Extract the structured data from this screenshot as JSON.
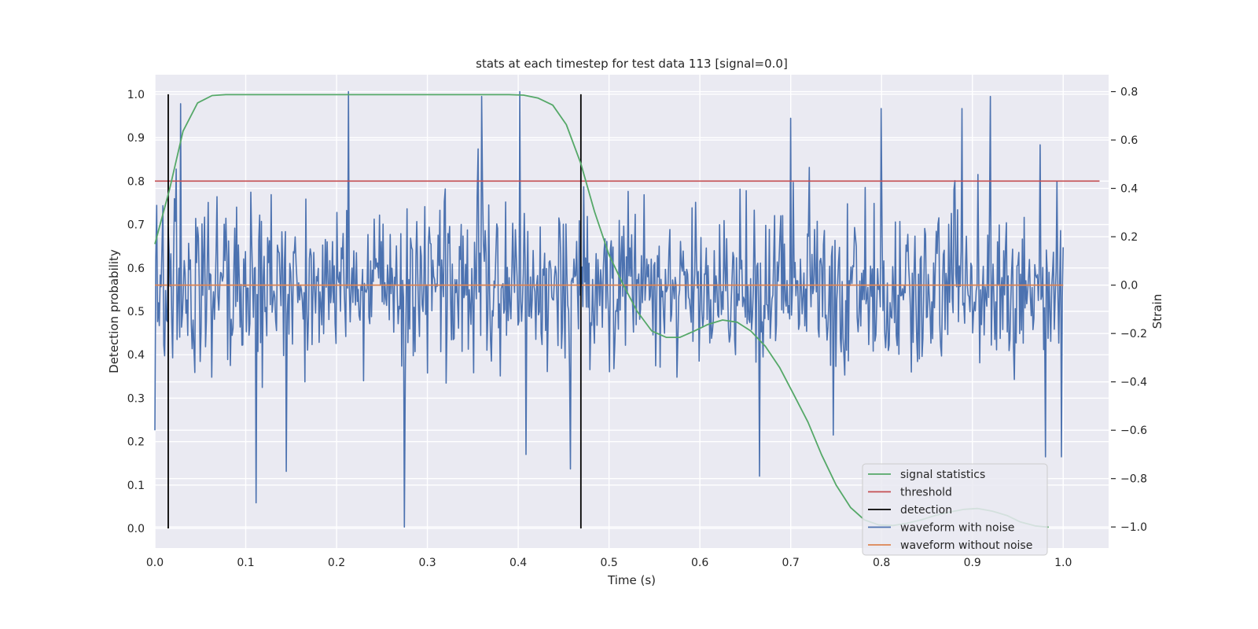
{
  "chart_data": {
    "type": "line",
    "title": "stats at each timestep for test data 113 [signal=0.0]",
    "xlabel": "Time (s)",
    "ylabel": "Detection probability",
    "y2label": "Strain",
    "xlim": [
      0.0,
      1.05
    ],
    "ylim": [
      -0.045,
      1.045
    ],
    "y2lim": [
      -1.087,
      0.87
    ],
    "xticks": [
      "0.0",
      "0.1",
      "0.2",
      "0.3",
      "0.4",
      "0.5",
      "0.6",
      "0.7",
      "0.8",
      "0.9",
      "1.0"
    ],
    "yticks": [
      "0.0",
      "0.1",
      "0.2",
      "0.3",
      "0.4",
      "0.5",
      "0.6",
      "0.7",
      "0.8",
      "0.9",
      "1.0"
    ],
    "y2ticks": [
      "−1.0",
      "−0.8",
      "−0.6",
      "−0.4",
      "−0.2",
      "0.0",
      "0.2",
      "0.4",
      "0.6",
      "0.8"
    ],
    "grid": true,
    "legend_position": "lower-right",
    "series": [
      {
        "name": "signal statistics",
        "axis": "left",
        "color": "#55a868",
        "x": [
          0.0,
          0.016,
          0.031,
          0.047,
          0.063,
          0.078,
          0.1,
          0.2,
          0.3,
          0.39,
          0.406,
          0.422,
          0.438,
          0.453,
          0.469,
          0.484,
          0.5,
          0.516,
          0.531,
          0.547,
          0.563,
          0.578,
          0.594,
          0.609,
          0.625,
          0.641,
          0.656,
          0.672,
          0.688,
          0.703,
          0.719,
          0.734,
          0.75,
          0.766,
          0.781,
          0.797,
          0.813,
          0.828,
          0.844,
          0.859,
          0.875,
          0.891,
          0.906,
          0.922,
          0.938,
          0.953,
          0.969,
          0.984
        ],
        "y": [
          0.655,
          0.78,
          0.915,
          0.98,
          0.997,
          0.999,
          0.999,
          0.999,
          0.999,
          0.999,
          0.998,
          0.991,
          0.975,
          0.93,
          0.84,
          0.73,
          0.63,
          0.56,
          0.5,
          0.455,
          0.44,
          0.44,
          0.455,
          0.47,
          0.48,
          0.475,
          0.455,
          0.42,
          0.37,
          0.31,
          0.245,
          0.17,
          0.1,
          0.048,
          0.02,
          0.008,
          0.007,
          0.012,
          0.02,
          0.03,
          0.038,
          0.044,
          0.046,
          0.04,
          0.03,
          0.015,
          0.006,
          0.003
        ]
      },
      {
        "name": "threshold",
        "axis": "left",
        "color": "#c44e52",
        "value": 0.8
      },
      {
        "name": "detection",
        "axis": "left",
        "color": "#000000",
        "x": [
          0.0147,
          0.469
        ],
        "y_range": [
          0.0,
          1.0
        ]
      },
      {
        "name": "waveform with noise",
        "axis": "right",
        "color": "#4c72b0",
        "noise_std": 0.3,
        "n_points": 1024,
        "peaks": [
          [
            0.0,
            -0.6
          ],
          [
            0.014,
            -0.15
          ],
          [
            0.023,
            0.48
          ],
          [
            0.028,
            0.75
          ],
          [
            0.111,
            -0.9
          ],
          [
            0.145,
            -0.77
          ],
          [
            0.213,
            0.8
          ],
          [
            0.275,
            -1.0
          ],
          [
            0.36,
            0.78
          ],
          [
            0.402,
            0.8
          ],
          [
            0.409,
            -0.7
          ],
          [
            0.457,
            -0.76
          ],
          [
            0.666,
            -0.79
          ],
          [
            0.7,
            0.69
          ],
          [
            0.747,
            -0.62
          ],
          [
            0.8,
            0.73
          ],
          [
            0.889,
            0.73
          ],
          [
            0.92,
            0.78
          ],
          [
            0.975,
            0.58
          ],
          [
            0.98,
            -0.71
          ],
          [
            0.998,
            -0.71
          ],
          [
            0.993,
            0.43
          ]
        ]
      },
      {
        "name": "waveform without noise",
        "axis": "right",
        "color": "#dd8452",
        "value": 0.0
      }
    ]
  }
}
